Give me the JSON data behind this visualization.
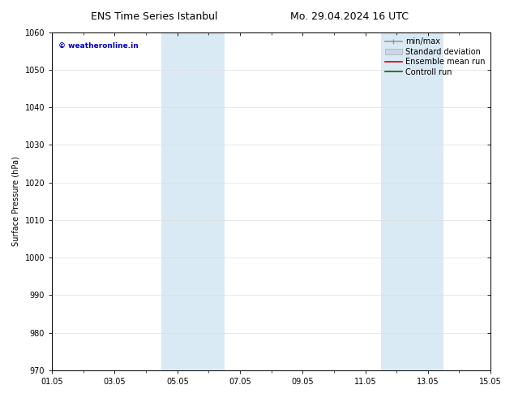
{
  "title_left": "ENS Time Series Istanbul",
  "title_right": "Mo. 29.04.2024 16 UTC",
  "ylabel": "Surface Pressure (hPa)",
  "ylim": [
    970,
    1060
  ],
  "yticks": [
    970,
    980,
    990,
    1000,
    1010,
    1020,
    1030,
    1040,
    1050,
    1060
  ],
  "xmin": 0,
  "xmax": 14,
  "xtick_labels": [
    "01.05",
    "03.05",
    "05.05",
    "07.05",
    "09.05",
    "11.05",
    "13.05",
    "15.05"
  ],
  "xtick_positions": [
    0,
    2,
    4,
    6,
    8,
    10,
    12,
    14
  ],
  "shaded_bands": [
    {
      "x_start": 3.5,
      "x_end": 5.5,
      "color": "#daeaf5"
    },
    {
      "x_start": 10.5,
      "x_end": 12.5,
      "color": "#daeaf5"
    }
  ],
  "watermark_text": "© weatheronline.in",
  "watermark_color": "#0000cc",
  "background_color": "#ffffff",
  "legend_entries": [
    {
      "label": "min/max",
      "color": "#999999",
      "lw": 1.2
    },
    {
      "label": "Standard deviation",
      "color": "#c8d8e8",
      "lw": 8
    },
    {
      "label": "Ensemble mean run",
      "color": "#cc0000",
      "lw": 1.2
    },
    {
      "label": "Controll run",
      "color": "#006600",
      "lw": 1.2
    }
  ],
  "title_fontsize": 9,
  "label_fontsize": 7,
  "tick_fontsize": 7,
  "legend_fontsize": 7
}
